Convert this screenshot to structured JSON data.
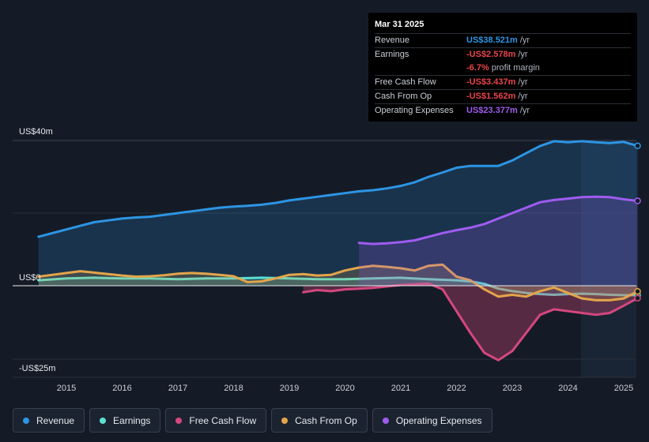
{
  "chart_data": {
    "type": "area",
    "title": "",
    "y_unit_labels": {
      "top": "US$40m",
      "zero": "US$0",
      "bottom": "-US$25m"
    },
    "ylim": [
      -25,
      40
    ],
    "xlim": [
      2014.5,
      2025.25
    ],
    "x_ticks": [
      "2015",
      "2016",
      "2017",
      "2018",
      "2019",
      "2020",
      "2021",
      "2022",
      "2023",
      "2024",
      "2025"
    ],
    "series": [
      {
        "name": "Revenue",
        "color": "#2d95e4",
        "fill": true,
        "x": [
          2014.5,
          2014.75,
          2015.0,
          2015.25,
          2015.5,
          2015.75,
          2016.0,
          2016.25,
          2016.5,
          2016.75,
          2017.0,
          2017.25,
          2017.5,
          2017.75,
          2018.0,
          2018.25,
          2018.5,
          2018.75,
          2019.0,
          2019.25,
          2019.5,
          2019.75,
          2020.0,
          2020.25,
          2020.5,
          2020.75,
          2021.0,
          2021.25,
          2021.5,
          2021.75,
          2022.0,
          2022.25,
          2022.5,
          2022.75,
          2023.0,
          2023.25,
          2023.5,
          2023.75,
          2024.0,
          2024.25,
          2024.5,
          2024.75,
          2025.0,
          2025.25
        ],
        "values": [
          13.5,
          14.5,
          15.5,
          16.5,
          17.5,
          18.0,
          18.5,
          18.8,
          19.0,
          19.5,
          20.0,
          20.5,
          21.0,
          21.5,
          21.8,
          22.0,
          22.3,
          22.8,
          23.5,
          24.0,
          24.5,
          25.0,
          25.5,
          26.0,
          26.3,
          26.8,
          27.5,
          28.5,
          30.0,
          31.2,
          32.5,
          33.0,
          33.0,
          33.0,
          34.5,
          36.5,
          38.5,
          39.8,
          39.5,
          39.8,
          39.5,
          39.3,
          39.6,
          38.521
        ]
      },
      {
        "name": "Earnings",
        "color": "#5ce0d0",
        "fill": true,
        "x": [
          2014.5,
          2015.0,
          2015.5,
          2016.0,
          2016.5,
          2017.0,
          2017.5,
          2018.0,
          2018.5,
          2019.0,
          2019.5,
          2020.0,
          2020.5,
          2021.0,
          2021.5,
          2022.0,
          2022.25,
          2022.5,
          2022.75,
          2023.0,
          2023.25,
          2023.5,
          2023.75,
          2024.0,
          2024.25,
          2024.5,
          2024.75,
          2025.0,
          2025.25
        ],
        "values": [
          1.5,
          2.0,
          2.2,
          2.0,
          2.0,
          1.8,
          2.0,
          2.0,
          2.2,
          2.0,
          1.8,
          1.8,
          2.0,
          2.2,
          1.8,
          1.5,
          1.2,
          0.5,
          -0.8,
          -1.5,
          -2.0,
          -2.3,
          -2.5,
          -2.3,
          -2.2,
          -2.3,
          -2.5,
          -2.6,
          -2.578
        ]
      },
      {
        "name": "Free Cash Flow",
        "color": "#d4477e",
        "fill": true,
        "x": [
          2019.25,
          2019.5,
          2019.75,
          2020.0,
          2020.25,
          2020.5,
          2020.75,
          2021.0,
          2021.25,
          2021.5,
          2021.75,
          2022.0,
          2022.25,
          2022.5,
          2022.75,
          2023.0,
          2023.25,
          2023.5,
          2023.75,
          2024.0,
          2024.25,
          2024.5,
          2024.75,
          2025.0,
          2025.25
        ],
        "values": [
          -1.8,
          -1.2,
          -1.5,
          -1.0,
          -0.8,
          -0.6,
          -0.2,
          0.2,
          0.4,
          0.6,
          -1.0,
          -7.0,
          -13.0,
          -18.5,
          -20.5,
          -18.0,
          -13.0,
          -8.0,
          -6.5,
          -7.0,
          -7.5,
          -8.0,
          -7.5,
          -5.5,
          -3.437
        ]
      },
      {
        "name": "Cash From Op",
        "color": "#e3a54a",
        "fill": true,
        "x": [
          2014.5,
          2014.75,
          2015.0,
          2015.25,
          2015.5,
          2015.75,
          2016.0,
          2016.25,
          2016.5,
          2016.75,
          2017.0,
          2017.25,
          2017.5,
          2017.75,
          2018.0,
          2018.25,
          2018.5,
          2018.75,
          2019.0,
          2019.25,
          2019.5,
          2019.75,
          2020.0,
          2020.25,
          2020.5,
          2020.75,
          2021.0,
          2021.25,
          2021.5,
          2021.75,
          2022.0,
          2022.25,
          2022.5,
          2022.75,
          2023.0,
          2023.25,
          2023.5,
          2023.75,
          2024.0,
          2024.25,
          2024.5,
          2024.75,
          2025.0,
          2025.25
        ],
        "values": [
          2.5,
          3.0,
          3.5,
          4.0,
          3.6,
          3.2,
          2.8,
          2.5,
          2.6,
          2.9,
          3.3,
          3.5,
          3.3,
          3.0,
          2.6,
          1.0,
          1.2,
          2.0,
          3.0,
          3.2,
          2.8,
          3.0,
          4.2,
          5.0,
          5.5,
          5.2,
          4.8,
          4.2,
          5.5,
          5.8,
          2.5,
          1.5,
          -1.0,
          -3.0,
          -2.5,
          -3.0,
          -1.5,
          -0.5,
          -2.0,
          -3.5,
          -4.0,
          -4.0,
          -3.5,
          -1.562
        ]
      },
      {
        "name": "Operating Expenses",
        "color": "#9f5cf0",
        "fill": true,
        "x": [
          2020.25,
          2020.5,
          2020.75,
          2021.0,
          2021.25,
          2021.5,
          2021.75,
          2022.0,
          2022.25,
          2022.5,
          2022.75,
          2023.0,
          2023.25,
          2023.5,
          2023.75,
          2024.0,
          2024.25,
          2024.5,
          2024.75,
          2025.0,
          2025.25
        ],
        "values": [
          11.8,
          11.5,
          11.7,
          12.0,
          12.5,
          13.5,
          14.5,
          15.3,
          16.0,
          17.0,
          18.5,
          20.0,
          21.5,
          23.0,
          23.6,
          24.0,
          24.4,
          24.5,
          24.4,
          23.8,
          23.377
        ]
      }
    ]
  },
  "tooltip": {
    "date": "Mar 31 2025",
    "rows": [
      {
        "label": "Revenue",
        "value": "US$38.521m",
        "unit": "/yr"
      },
      {
        "label": "Earnings",
        "value": "-US$2.578m",
        "unit": "/yr"
      },
      {
        "label": "",
        "value": "-6.7%",
        "unit": "profit margin"
      },
      {
        "label": "Free Cash Flow",
        "value": "-US$3.437m",
        "unit": "/yr"
      },
      {
        "label": "Cash From Op",
        "value": "-US$1.562m",
        "unit": "/yr"
      },
      {
        "label": "Operating Expenses",
        "value": "US$23.377m",
        "unit": "/yr"
      }
    ]
  },
  "legend": [
    {
      "label": "Revenue",
      "color": "#2d95e4"
    },
    {
      "label": "Earnings",
      "color": "#5ce0d0"
    },
    {
      "label": "Free Cash Flow",
      "color": "#d4477e"
    },
    {
      "label": "Cash From Op",
      "color": "#e3a54a"
    },
    {
      "label": "Operating Expenses",
      "color": "#9f5cf0"
    }
  ]
}
